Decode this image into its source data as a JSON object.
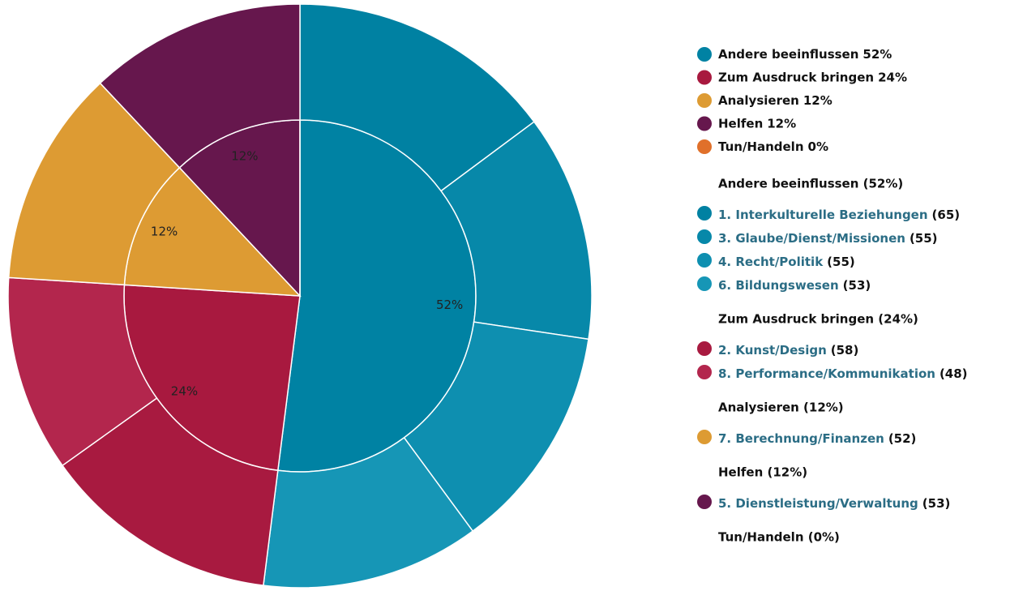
{
  "chart_data": {
    "type": "sunburst",
    "series": [
      {
        "name": "Andere beeinflussen",
        "value": 52,
        "value_label": "52%",
        "heading": "Andere beeinflussen (52%)",
        "color": "#0082a3",
        "children": [
          {
            "name": "1. Interkulturelle Beziehungen",
            "value": 65,
            "value_label": "(65)",
            "color": "#0081a2"
          },
          {
            "name": "3. Glaube/Dienst/Missionen",
            "value": 55,
            "value_label": "(55)",
            "color": "#0788a9"
          },
          {
            "name": "4. Recht/Politik",
            "value": 55,
            "value_label": "(55)",
            "color": "#0e8fb0"
          },
          {
            "name": "6. Bildungswesen",
            "value": 53,
            "value_label": "(53)",
            "color": "#1696b6"
          }
        ]
      },
      {
        "name": "Zum Ausdruck bringen",
        "value": 24,
        "value_label": "24%",
        "heading": "Zum Ausdruck bringen (24%)",
        "color": "#a8193f",
        "children": [
          {
            "name": "2. Kunst/Design",
            "value": 58,
            "value_label": "(58)",
            "color": "#a81a40"
          },
          {
            "name": "8. Performance/Kommunikation",
            "value": 48,
            "value_label": "(48)",
            "color": "#b3264d"
          }
        ]
      },
      {
        "name": "Analysieren",
        "value": 12,
        "value_label": "12%",
        "heading": "Analysieren (12%)",
        "color": "#dd9b33",
        "children": [
          {
            "name": "7. Berechnung/Finanzen",
            "value": 52,
            "value_label": "(52)",
            "color": "#dd9b33"
          }
        ]
      },
      {
        "name": "Helfen",
        "value": 12,
        "value_label": "12%",
        "heading": "Helfen (12%)",
        "color": "#66174d",
        "children": [
          {
            "name": "5. Dienstleistung/Verwaltung",
            "value": 53,
            "value_label": "(53)",
            "color": "#66174d"
          }
        ]
      },
      {
        "name": "Tun/Handeln",
        "value": 0,
        "value_label": "0%",
        "heading": "Tun/Handeln (0%)",
        "color": "#e0702a",
        "children": []
      }
    ]
  }
}
